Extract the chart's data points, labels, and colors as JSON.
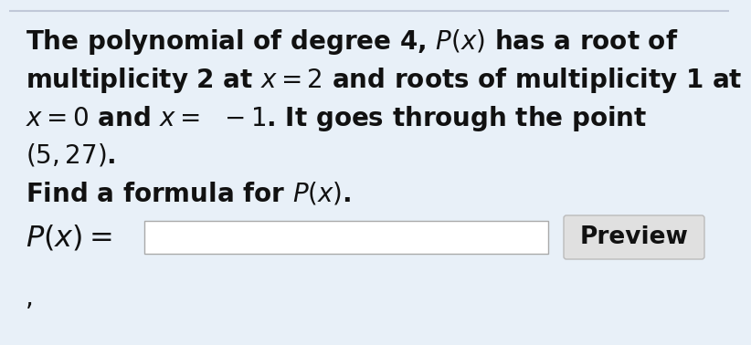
{
  "bg_color": "#e8f0f8",
  "inner_bg_color": "#eef4fb",
  "text_color": "#111111",
  "line1": "The polynomial of degree 4, $\\mathbf{\\mathit{P}}(\\mathbf{\\mathit{x}})$ has a root of",
  "line2": "multiplicity 2 at $\\mathbf{\\mathit{x}} = 2$ and roots of multiplicity 1 at",
  "line3": "$\\mathbf{\\mathit{x}} = 0$ and $\\mathbf{\\mathit{x}} = \\;\\; - 1$. It goes through the point",
  "line4": "$(5, 27)$.",
  "line5": "Find a formula for $\\mathbf{\\mathit{P}}(\\mathbf{\\mathit{x}})$.",
  "line6_label": "$\\mathbf{\\mathit{P}}(\\mathbf{\\mathit{x}}) =$",
  "button_label": "Preview",
  "font_size": 20,
  "figwidth": 7.88,
  "figheight": 3.58
}
